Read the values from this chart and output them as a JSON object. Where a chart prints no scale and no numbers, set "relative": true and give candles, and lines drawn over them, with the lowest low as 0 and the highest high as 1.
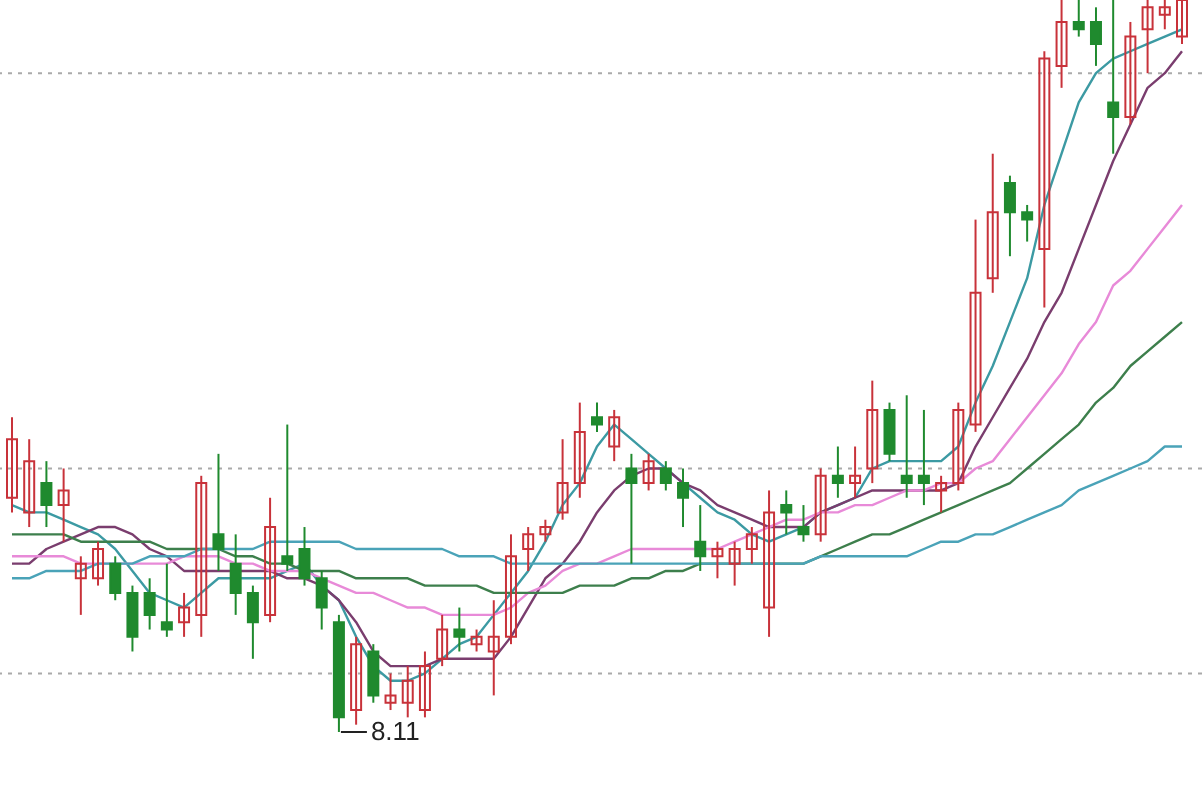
{
  "chart_data": {
    "type": "candlestick",
    "relative": true,
    "categories": [
      null,
      null,
      null,
      null,
      null,
      null,
      null,
      null,
      null,
      null,
      null,
      null,
      null,
      null,
      null,
      null,
      null,
      null,
      null,
      null,
      null,
      null,
      null,
      null,
      null,
      null,
      null,
      null,
      null,
      null,
      null,
      null,
      null,
      null,
      null,
      null,
      null,
      null,
      null,
      null,
      null,
      null,
      null,
      null,
      null,
      null,
      null,
      null,
      null,
      null,
      null,
      null,
      null,
      null,
      null,
      null,
      null,
      null,
      null,
      null,
      null,
      null,
      null,
      null,
      null,
      null,
      null,
      null,
      null
    ],
    "ohlc": [
      [
        0.32,
        0.43,
        0.3,
        0.4
      ],
      [
        0.3,
        0.4,
        0.28,
        0.37
      ],
      [
        0.34,
        0.37,
        0.28,
        0.31
      ],
      [
        0.31,
        0.36,
        0.26,
        0.33
      ],
      [
        0.21,
        0.24,
        0.16,
        0.23
      ],
      [
        0.21,
        0.26,
        0.2,
        0.25
      ],
      [
        0.23,
        0.24,
        0.18,
        0.19
      ],
      [
        0.19,
        0.2,
        0.11,
        0.13
      ],
      [
        0.19,
        0.21,
        0.14,
        0.16
      ],
      [
        0.15,
        0.23,
        0.13,
        0.14
      ],
      [
        0.15,
        0.19,
        0.13,
        0.17
      ],
      [
        0.16,
        0.35,
        0.13,
        0.34
      ],
      [
        0.27,
        0.38,
        0.22,
        0.25
      ],
      [
        0.23,
        0.27,
        0.16,
        0.19
      ],
      [
        0.19,
        0.2,
        0.1,
        0.15
      ],
      [
        0.16,
        0.32,
        0.15,
        0.28
      ],
      [
        0.24,
        0.42,
        0.22,
        0.23
      ],
      [
        0.25,
        0.28,
        0.2,
        0.21
      ],
      [
        0.21,
        0.22,
        0.14,
        0.17
      ],
      [
        0.15,
        0.16,
        0,
        0.02
      ],
      [
        0.03,
        0.13,
        0.01,
        0.12
      ],
      [
        0.11,
        0.12,
        0.04,
        0.05
      ],
      [
        0.04,
        0.08,
        0.03,
        0.05
      ],
      [
        0.04,
        0.09,
        0.02,
        0.07
      ],
      [
        0.03,
        0.11,
        0.02,
        0.09
      ],
      [
        0.1,
        0.16,
        0.09,
        0.14
      ],
      [
        0.14,
        0.17,
        0.11,
        0.13
      ],
      [
        0.12,
        0.14,
        0.11,
        0.13
      ],
      [
        0.11,
        0.18,
        0.05,
        0.13
      ],
      [
        0.13,
        0.27,
        0.12,
        0.24
      ],
      [
        0.25,
        0.28,
        0.22,
        0.27
      ],
      [
        0.27,
        0.29,
        0.26,
        0.28
      ],
      [
        0.3,
        0.4,
        0.29,
        0.34
      ],
      [
        0.34,
        0.45,
        0.32,
        0.41
      ],
      [
        0.43,
        0.45,
        0.41,
        0.42
      ],
      [
        0.39,
        0.44,
        0.37,
        0.43
      ],
      [
        0.36,
        0.38,
        0.23,
        0.34
      ],
      [
        0.34,
        0.38,
        0.33,
        0.37
      ],
      [
        0.36,
        0.37,
        0.33,
        0.34
      ],
      [
        0.34,
        0.36,
        0.28,
        0.32
      ],
      [
        0.26,
        0.31,
        0.22,
        0.24
      ],
      [
        0.24,
        0.26,
        0.21,
        0.25
      ],
      [
        0.23,
        0.26,
        0.2,
        0.25
      ],
      [
        0.25,
        0.28,
        0.23,
        0.27
      ],
      [
        0.17,
        0.33,
        0.13,
        0.3
      ],
      [
        0.31,
        0.33,
        0.27,
        0.3
      ],
      [
        0.28,
        0.31,
        0.26,
        0.27
      ],
      [
        0.27,
        0.36,
        0.26,
        0.35
      ],
      [
        0.35,
        0.39,
        0.32,
        0.34
      ],
      [
        0.34,
        0.39,
        0.32,
        0.35
      ],
      [
        0.36,
        0.48,
        0.34,
        0.44
      ],
      [
        0.44,
        0.45,
        0.37,
        0.38
      ],
      [
        0.35,
        0.46,
        0.32,
        0.34
      ],
      [
        0.35,
        0.44,
        0.31,
        0.34
      ],
      [
        0.33,
        0.35,
        0.3,
        0.34
      ],
      [
        0.34,
        0.45,
        0.33,
        0.44
      ],
      [
        0.42,
        0.7,
        0.41,
        0.6
      ],
      [
        0.62,
        0.79,
        0.6,
        0.71
      ],
      [
        0.75,
        0.76,
        0.65,
        0.71
      ],
      [
        0.71,
        0.72,
        0.67,
        0.7
      ],
      [
        0.66,
        0.93,
        0.58,
        0.92
      ],
      [
        0.91,
        1,
        0.88,
        0.97
      ],
      [
        0.97,
        1,
        0.95,
        0.96
      ],
      [
        0.97,
        0.99,
        0.91,
        0.94
      ],
      [
        0.86,
        1,
        0.79,
        0.84
      ],
      [
        0.84,
        0.97,
        0.83,
        0.95
      ],
      [
        0.96,
        1,
        0.9,
        0.99
      ],
      [
        0.98,
        1,
        0.96,
        0.99
      ],
      [
        0.95,
        1,
        0.94,
        1
      ]
    ],
    "series": [
      {
        "type": "line",
        "color": "#3c9aa3",
        "values": [
          0.31,
          0.3,
          0.3,
          0.29,
          0.28,
          0.27,
          0.25,
          0.22,
          0.19,
          0.18,
          0.17,
          0.19,
          0.21,
          0.21,
          0.21,
          0.21,
          0.22,
          0.23,
          0.2,
          0.18,
          0.13,
          0.09,
          0.07,
          0.07,
          0.08,
          0.1,
          0.12,
          0.13,
          0.16,
          0.19,
          0.22,
          0.26,
          0.31,
          0.34,
          0.39,
          0.42,
          0.4,
          0.38,
          0.36,
          0.34,
          0.32,
          0.3,
          0.29,
          0.27,
          0.26,
          0.27,
          0.28,
          0.3,
          0.31,
          0.32,
          0.36,
          0.37,
          0.37,
          0.37,
          0.37,
          0.39,
          0.45,
          0.5,
          0.56,
          0.62,
          0.72,
          0.79,
          0.86,
          0.9,
          0.92,
          0.93,
          0.94,
          0.95,
          0.96
        ]
      },
      {
        "type": "line",
        "color": "#7a3d6e",
        "values": [
          0.23,
          0.23,
          0.25,
          0.26,
          0.27,
          0.28,
          0.28,
          0.27,
          0.25,
          0.24,
          0.22,
          0.22,
          0.22,
          0.22,
          0.22,
          0.22,
          0.21,
          0.21,
          0.2,
          0.18,
          0.15,
          0.11,
          0.09,
          0.09,
          0.09,
          0.1,
          0.1,
          0.1,
          0.1,
          0.13,
          0.17,
          0.21,
          0.23,
          0.26,
          0.3,
          0.33,
          0.35,
          0.36,
          0.36,
          0.34,
          0.33,
          0.31,
          0.3,
          0.29,
          0.28,
          0.28,
          0.28,
          0.3,
          0.31,
          0.32,
          0.33,
          0.33,
          0.33,
          0.33,
          0.33,
          0.34,
          0.39,
          0.43,
          0.47,
          0.51,
          0.56,
          0.6,
          0.66,
          0.72,
          0.78,
          0.83,
          0.88,
          0.9,
          0.93
        ]
      },
      {
        "type": "line",
        "color": "#e88ad8",
        "values": [
          0.24,
          0.24,
          0.24,
          0.24,
          0.23,
          0.23,
          0.23,
          0.23,
          0.23,
          0.23,
          0.24,
          0.24,
          0.24,
          0.23,
          0.23,
          0.22,
          0.22,
          0.22,
          0.21,
          0.2,
          0.19,
          0.19,
          0.18,
          0.17,
          0.17,
          0.16,
          0.16,
          0.16,
          0.16,
          0.17,
          0.19,
          0.2,
          0.22,
          0.23,
          0.23,
          0.24,
          0.25,
          0.25,
          0.25,
          0.25,
          0.25,
          0.25,
          0.26,
          0.27,
          0.28,
          0.29,
          0.29,
          0.3,
          0.3,
          0.31,
          0.31,
          0.32,
          0.33,
          0.33,
          0.34,
          0.34,
          0.36,
          0.37,
          0.4,
          0.43,
          0.46,
          0.49,
          0.53,
          0.56,
          0.61,
          0.63,
          0.66,
          0.69,
          0.72
        ]
      },
      {
        "type": "line",
        "color": "#3d7f4c",
        "values": [
          0.27,
          0.27,
          0.27,
          0.27,
          0.26,
          0.26,
          0.26,
          0.26,
          0.26,
          0.25,
          0.25,
          0.25,
          0.25,
          0.24,
          0.24,
          0.23,
          0.23,
          0.22,
          0.22,
          0.22,
          0.21,
          0.21,
          0.21,
          0.21,
          0.2,
          0.2,
          0.2,
          0.2,
          0.19,
          0.19,
          0.19,
          0.19,
          0.19,
          0.2,
          0.2,
          0.2,
          0.21,
          0.21,
          0.22,
          0.22,
          0.23,
          0.23,
          0.23,
          0.23,
          0.23,
          0.23,
          0.23,
          0.24,
          0.25,
          0.26,
          0.27,
          0.27,
          0.28,
          0.29,
          0.3,
          0.31,
          0.32,
          0.33,
          0.34,
          0.36,
          0.38,
          0.4,
          0.42,
          0.45,
          0.47,
          0.5,
          0.52,
          0.54,
          0.56
        ]
      },
      {
        "type": "line",
        "color": "#4aa3b8",
        "values": [
          0.21,
          0.21,
          0.22,
          0.22,
          0.22,
          0.23,
          0.23,
          0.23,
          0.24,
          0.24,
          0.24,
          0.25,
          0.25,
          0.25,
          0.25,
          0.26,
          0.26,
          0.26,
          0.26,
          0.26,
          0.25,
          0.25,
          0.25,
          0.25,
          0.25,
          0.25,
          0.24,
          0.24,
          0.24,
          0.23,
          0.23,
          0.23,
          0.23,
          0.23,
          0.23,
          0.23,
          0.23,
          0.23,
          0.23,
          0.23,
          0.23,
          0.23,
          0.23,
          0.23,
          0.23,
          0.23,
          0.23,
          0.24,
          0.24,
          0.24,
          0.24,
          0.24,
          0.24,
          0.25,
          0.26,
          0.26,
          0.27,
          0.27,
          0.28,
          0.29,
          0.3,
          0.31,
          0.33,
          0.34,
          0.35,
          0.36,
          0.37,
          0.39,
          0.39
        ]
      }
    ],
    "ref_lines": [
      {
        "axis": "y",
        "value": 0.9,
        "color": "#aaaaaa",
        "line_style": "dotted"
      },
      {
        "axis": "y",
        "value": 0.36,
        "color": "#aaaaaa",
        "line_style": "dotted"
      },
      {
        "axis": "y",
        "value": 0.08,
        "color": "#aaaaaa",
        "line_style": "dotted"
      }
    ],
    "annotations": [
      "8.11"
    ]
  }
}
